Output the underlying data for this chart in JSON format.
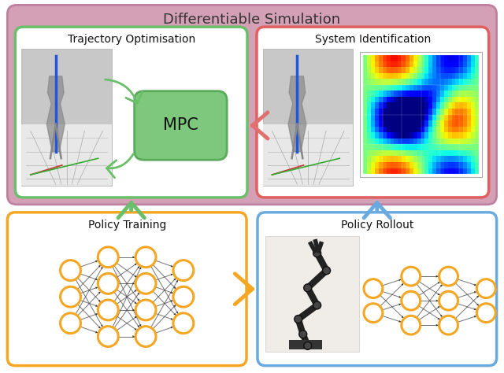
{
  "title": "Differentiable Simulation",
  "title_fontsize": 13,
  "bg_outer": "#d4a0b5",
  "border_outer": "#c080a0",
  "border_traj": "#6abf6a",
  "border_sysid": "#e06060",
  "border_policy_train": "#f5a623",
  "border_policy_rollout": "#6aabdf",
  "mpc_box_color": "#7dc87d",
  "mpc_border": "#5aaa5a",
  "mpc_text": "MPC",
  "label_traj": "Trajectory Optimisation",
  "label_sysid": "System Identification",
  "label_policy_train": "Policy Training",
  "label_policy_rollout": "Policy Rollout",
  "arrow_green": "#6abf6a",
  "arrow_red": "#e07070",
  "arrow_orange": "#f5a623",
  "arrow_blue": "#6aabdf",
  "node_color": "#ffffff",
  "node_edge_color": "#f5a623",
  "node_edge_width": 2.2,
  "nn_line_color": "#444444"
}
